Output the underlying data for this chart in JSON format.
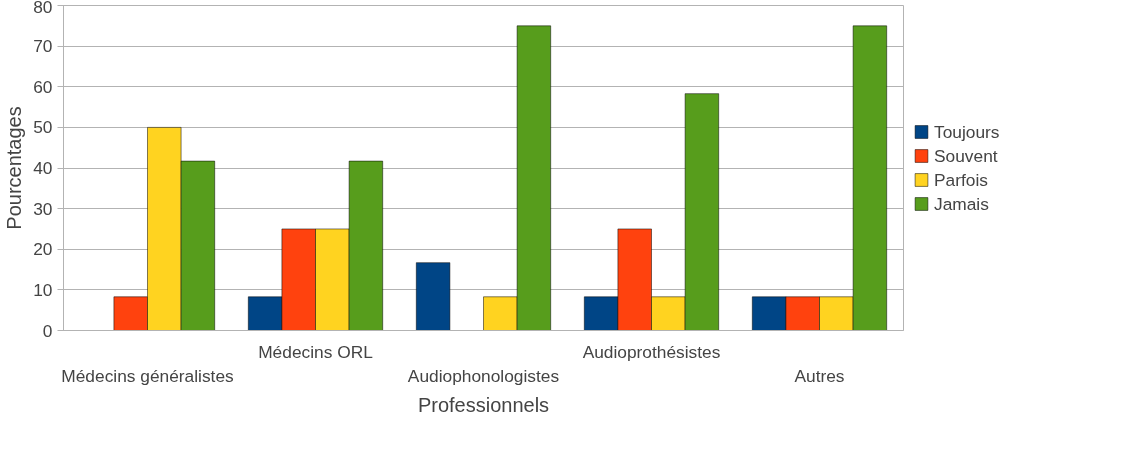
{
  "chart_data": {
    "type": "bar",
    "xlabel": "Professionnels",
    "ylabel": "Pourcentages",
    "categories": [
      "Médecins généralistes",
      "Médecins ORL",
      "Audiophonologistes",
      "Audioprothésistes",
      "Autres"
    ],
    "series": [
      {
        "name": "Toujours",
        "color": "#004586",
        "values": [
          null,
          8.3,
          16.7,
          8.3,
          8.3
        ]
      },
      {
        "name": "Souvent",
        "color": "#ff420e",
        "values": [
          8.3,
          25,
          null,
          25,
          8.3
        ]
      },
      {
        "name": "Parfois",
        "color": "#ffd320",
        "values": [
          50,
          25,
          8.3,
          8.3,
          8.3
        ]
      },
      {
        "name": "Jamais",
        "color": "#579d1c",
        "values": [
          41.7,
          41.7,
          75,
          58.3,
          75
        ]
      }
    ],
    "ylim": [
      0,
      80
    ],
    "yticks": [
      0,
      10,
      20,
      30,
      40,
      50,
      60,
      70,
      80
    ],
    "grid": "y",
    "legend": "right"
  }
}
